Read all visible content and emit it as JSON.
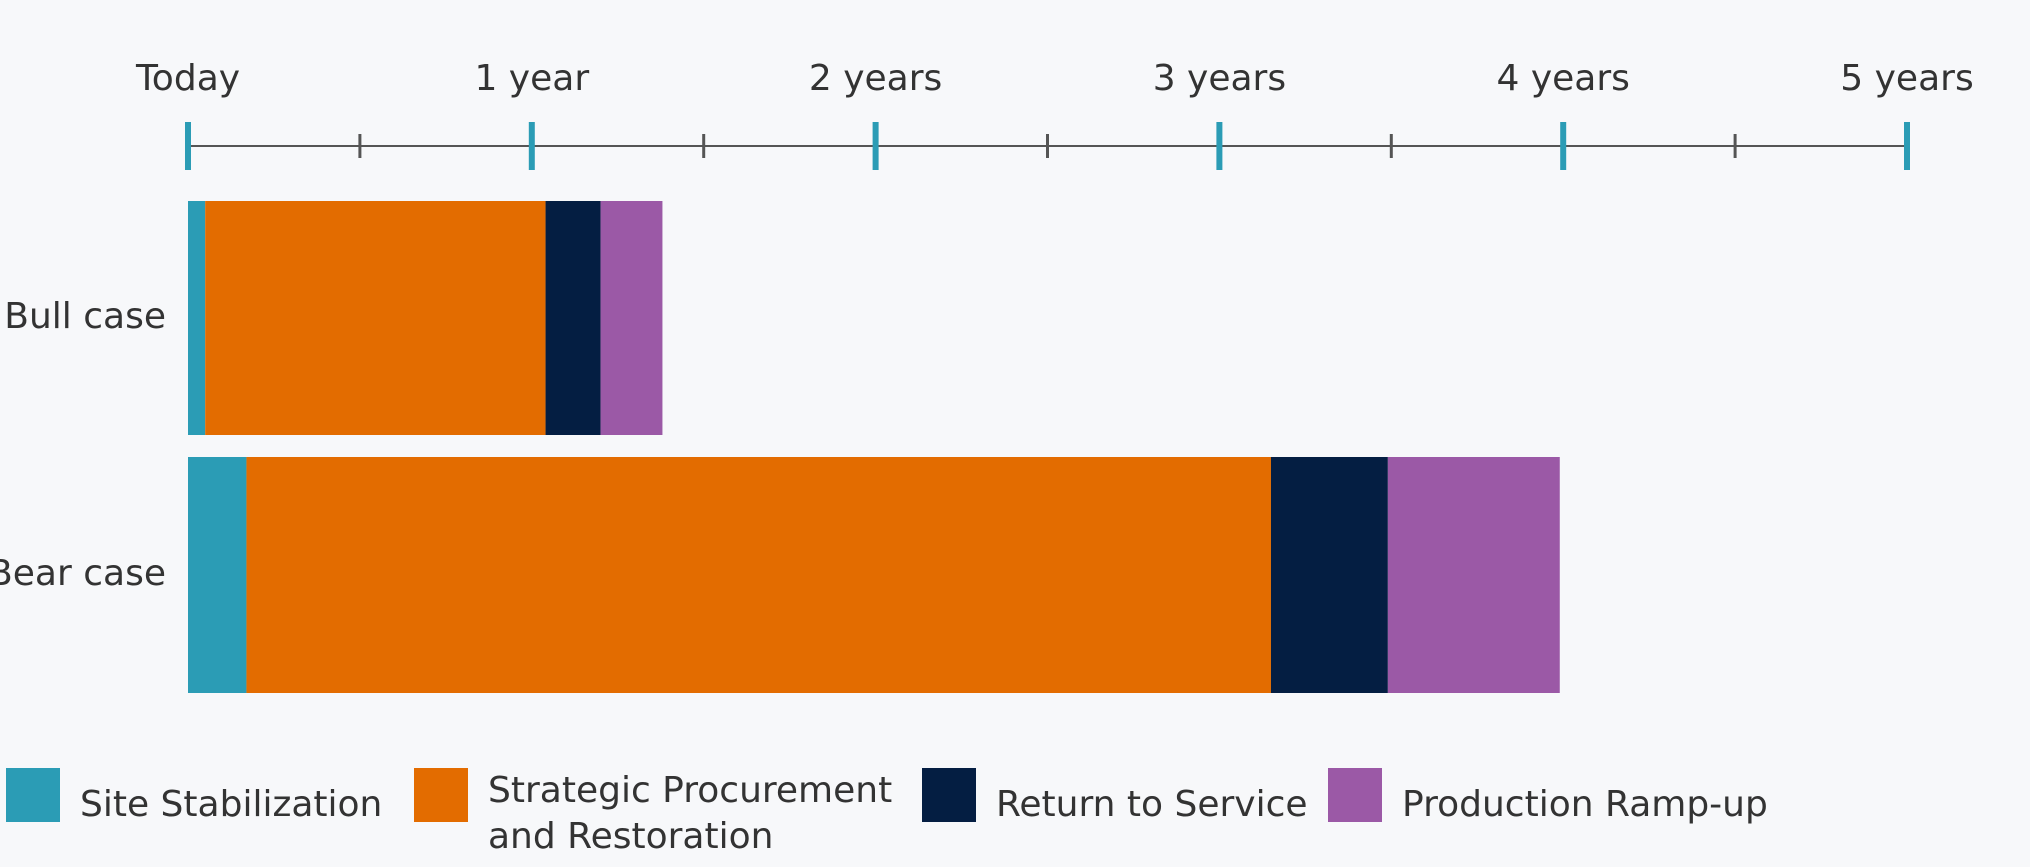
{
  "chart_data": {
    "type": "timeline_bar",
    "categories": [
      "Bull case",
      "Bear case"
    ],
    "series": [
      {
        "name": "Site Stabilization",
        "color": "#2b9cb5",
        "values": [
          0.05,
          0.17
        ]
      },
      {
        "name": "Strategic Procurement and Restoration",
        "color": "#e36c00",
        "values": [
          0.99,
          2.98
        ]
      },
      {
        "name": "Return to Service",
        "color": "#041e42",
        "values": [
          0.16,
          0.34
        ]
      },
      {
        "name": "Production Ramp-up",
        "color": "#9b59a6",
        "values": [
          0.18,
          0.5
        ]
      }
    ],
    "xlim": [
      0,
      5
    ],
    "xticks": [
      {
        "value": 0,
        "label": "Today"
      },
      {
        "value": 1,
        "label": "1 year"
      },
      {
        "value": 2,
        "label": "2 years"
      },
      {
        "value": 3,
        "label": "3 years"
      },
      {
        "value": 4,
        "label": "4 years"
      },
      {
        "value": 5,
        "label": "5 years"
      }
    ],
    "minor_xticks": [
      0.5,
      1.5,
      2.5,
      3.5,
      4.5
    ],
    "major_tick_color": "#2b9cb5",
    "axis_color": "#555555"
  }
}
